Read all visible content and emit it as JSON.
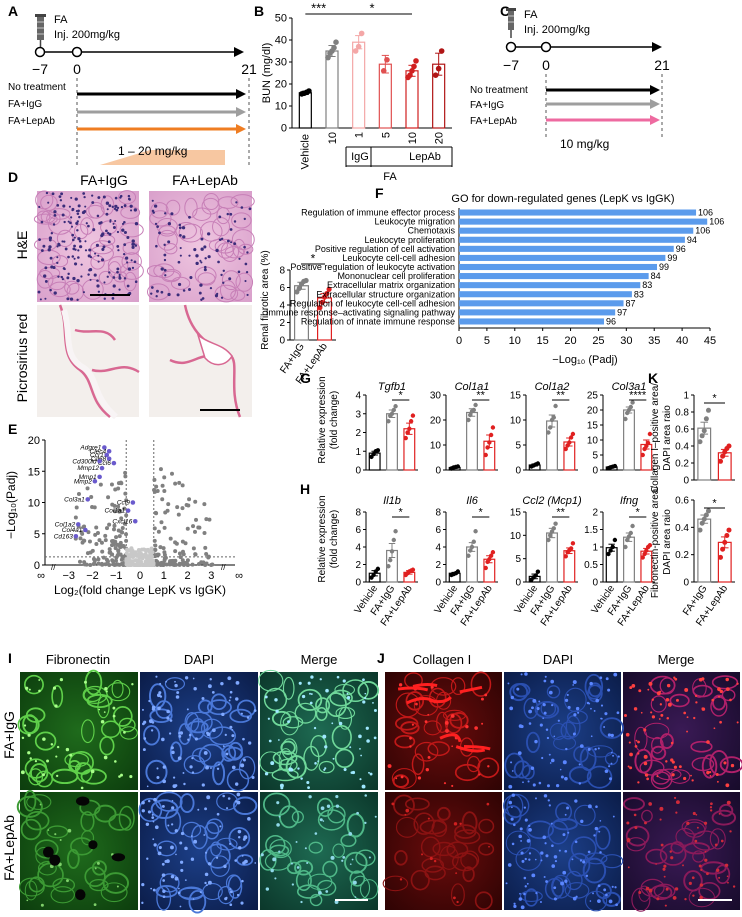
{
  "panelA": {
    "letter": "A",
    "drug": "FA",
    "dose": "Inj. 200mg/kg",
    "ticks": [
      "−7",
      "0",
      "21"
    ],
    "groups": [
      "No treatment",
      "FA+IgG",
      "FA+LepAb"
    ],
    "range": "1 – 20 mg/kg",
    "colors": {
      "none": "#000000",
      "igg": "#9e9e9e",
      "lepab": "#ef7d22"
    }
  },
  "panelB": {
    "letter": "B",
    "chart_data": {
      "type": "bar",
      "ylabel": "BUN (mg/dl)",
      "ylim": [
        0,
        50
      ],
      "yticks": [
        0,
        10,
        20,
        30,
        40,
        50
      ],
      "categories": [
        "Vehicle",
        "10",
        "1",
        "5",
        "10",
        "20"
      ],
      "group_labels": {
        "igg": "IgG",
        "lepab": "LepAb",
        "fa": "FA"
      },
      "values": [
        16,
        35,
        39,
        29,
        26,
        29
      ],
      "errors": [
        0.7,
        2.5,
        3.0,
        4.0,
        2.5,
        5.0
      ],
      "points": [
        [
          15.5,
          15.8,
          16.2,
          16.8
        ],
        [
          32,
          34,
          35,
          36.5,
          39
        ],
        [
          35,
          37,
          43
        ],
        [
          26,
          31
        ],
        [
          23,
          24,
          26,
          28,
          30.5
        ],
        [
          24,
          27,
          35
        ]
      ],
      "colors": [
        "#000000",
        "#808080",
        "#f4a7a7",
        "#e05050",
        "#d02020",
        "#b01515"
      ],
      "significance": [
        "***",
        "*"
      ]
    }
  },
  "panelC": {
    "letter": "C",
    "drug": "FA",
    "dose": "Inj. 200mg/kg",
    "ticks": [
      "−7",
      "0",
      "21"
    ],
    "groups": [
      "No treatment",
      "FA+IgG",
      "FA+LepAb"
    ],
    "lepab_dose": "10 mg/kg",
    "colors": {
      "none": "#000000",
      "igg": "#9e9e9e",
      "lepab": "#ee6aa0"
    }
  },
  "panelD": {
    "letter": "D",
    "col_labels": [
      "FA+IgG",
      "FA+LepAb"
    ],
    "row_labels": [
      "H&E",
      "Picrosirius red"
    ],
    "chart_data": {
      "type": "bar",
      "ylabel": "Renal fibrotic area (%)",
      "ylim": [
        0,
        8
      ],
      "yticks": [
        0,
        2,
        4,
        6,
        8
      ],
      "categories": [
        "FA+IgG",
        "FA+LepAb"
      ],
      "values": [
        6.2,
        4.8
      ],
      "errors": [
        0.4,
        0.5
      ],
      "points": [
        [
          5.5,
          5.9,
          6.4,
          6.7,
          6.8
        ],
        [
          3.7,
          4.3,
          4.9,
          5.3,
          5.8
        ]
      ],
      "colors": [
        "#808080",
        "#e02020"
      ],
      "significance": "*"
    }
  },
  "panelE": {
    "letter": "E",
    "chart_data": {
      "type": "scatter",
      "xlabel": "Log₂(fold change LepK vs IgGK)",
      "ylabel": "−Log₁₀(Padj)",
      "xlim": [
        -4,
        4
      ],
      "ylim": [
        0,
        20
      ],
      "xticks": [
        "∞",
        "−3",
        "−2",
        "−1",
        "0",
        "1",
        "2",
        "3",
        "∞"
      ],
      "yticks": [
        0,
        5,
        10,
        15,
        20
      ],
      "labeled_genes": [
        {
          "gene": "Adgre1",
          "x": -1.5,
          "y": 18.8
        },
        {
          "gene": "Clec4",
          "x": -1.3,
          "y": 18.2
        },
        {
          "gene": "Ccr1",
          "x": -1.4,
          "y": 17.6
        },
        {
          "gene": "Cd68",
          "x": -1.3,
          "y": 17.0
        },
        {
          "gene": "Ccl6",
          "x": -1.1,
          "y": 16.3
        },
        {
          "gene": "Cd300ld",
          "x": -1.7,
          "y": 16.6
        },
        {
          "gene": "Mmp12",
          "x": -1.6,
          "y": 15.5
        },
        {
          "gene": "Mmp1",
          "x": -1.7,
          "y": 14.1
        },
        {
          "gene": "Mmp2",
          "x": -1.9,
          "y": 13.4
        },
        {
          "gene": "Col3a1",
          "x": -2.2,
          "y": 10.5
        },
        {
          "gene": "Ccl9",
          "x": -0.3,
          "y": 10.0
        },
        {
          "gene": "Col1a1",
          "x": -0.5,
          "y": 8.7
        },
        {
          "gene": "Cxcl16",
          "x": -0.2,
          "y": 7.0
        },
        {
          "gene": "Col1a2",
          "x": -2.6,
          "y": 6.5
        },
        {
          "gene": "Col4a1",
          "x": -2.3,
          "y": 5.6
        },
        {
          "gene": "Cd163",
          "x": -2.7,
          "y": 4.6
        }
      ]
    }
  },
  "panelF": {
    "letter": "F",
    "chart_data": {
      "type": "bar",
      "title": "GO for down-regulated genes (LepK vs IgGK)",
      "xlabel": "−Log₁₀ (Padj)",
      "xlim": [
        0,
        45
      ],
      "xticks": [
        0,
        5,
        10,
        15,
        20,
        25,
        30,
        35,
        40,
        45
      ],
      "categories": [
        "Regulation of immune effector process",
        "Leukocyte migration",
        "Chemotaxis",
        "Leukocyte proliferation",
        "Positive regulation of cell activation",
        "Leukocyte cell-cell adhesion",
        "Positive regulation of leukocyte activation",
        "Mononuclear cell proliferation",
        "Extracellular matrix organization",
        "Extracellular structure organization",
        "Regulation of leukocyte cell-cell adhesion",
        "Immune response–activating signaling pathway",
        "Regulation of innate immune response"
      ],
      "values": [
        42.5,
        44.5,
        42.0,
        40.5,
        38.5,
        37.0,
        35.5,
        34.0,
        32.5,
        31.0,
        29.5,
        28.0,
        26.0
      ],
      "data_labels": [
        "106",
        "106",
        "106",
        "94",
        "96",
        "99",
        "99",
        "84",
        "83",
        "83",
        "87",
        "97",
        "96"
      ],
      "color": "#5b9bec"
    }
  },
  "panelG": {
    "letter": "G",
    "ylabel": [
      "Relative expression",
      "(fold change)"
    ],
    "chart_data": [
      {
        "type": "bar",
        "title": "Tgfb1",
        "ylim": [
          0,
          4
        ],
        "yticks": [
          0,
          1,
          2,
          3,
          4
        ],
        "values": [
          0.9,
          3.0,
          2.2
        ],
        "errors": [
          0.1,
          0.2,
          0.3
        ],
        "points": [
          [
            0.7,
            0.85,
            1.0,
            1.05
          ],
          [
            2.6,
            2.9,
            3.0,
            3.2,
            3.4
          ],
          [
            1.7,
            2.0,
            2.2,
            2.6,
            2.9
          ]
        ],
        "significance": "*"
      },
      {
        "type": "bar",
        "title": "Col1a1",
        "ylim": [
          0,
          30
        ],
        "yticks": [
          0,
          10,
          20,
          30
        ],
        "values": [
          1.0,
          23.0,
          11.5
        ],
        "errors": [
          0.3,
          1.5,
          2.5
        ],
        "points": [
          [
            0.6,
            1.0,
            1.2,
            1.4
          ],
          [
            20,
            22,
            23.5,
            24,
            26
          ],
          [
            6,
            9,
            11,
            14,
            17
          ]
        ],
        "significance": "**"
      },
      {
        "type": "bar",
        "title": "Col1a2",
        "ylim": [
          0,
          15
        ],
        "yticks": [
          0,
          5,
          10,
          15
        ],
        "values": [
          1.0,
          9.8,
          5.6
        ],
        "errors": [
          0.2,
          1.2,
          0.8
        ],
        "points": [
          [
            0.7,
            0.9,
            1.1,
            1.3
          ],
          [
            7.5,
            8.5,
            10,
            10.5,
            12.8
          ],
          [
            4.2,
            4.9,
            5.5,
            6.5,
            7.2
          ]
        ],
        "significance": "**"
      },
      {
        "type": "bar",
        "title": "Col3a1",
        "ylim": [
          0,
          25
        ],
        "yticks": [
          0,
          5,
          10,
          15,
          20,
          25
        ],
        "values": [
          1.0,
          20.0,
          8.5
        ],
        "errors": [
          0.2,
          1.0,
          1.5
        ],
        "points": [
          [
            0.6,
            0.9,
            1.1,
            1.3
          ],
          [
            17,
            19,
            20,
            21,
            22.5
          ],
          [
            5,
            7,
            8,
            9,
            12
          ]
        ],
        "significance": "****"
      }
    ]
  },
  "panelH": {
    "letter": "H",
    "ylabel": [
      "Relative expression",
      "(fold change)"
    ],
    "categories": [
      "Vehicle",
      "FA+IgG",
      "FA+LepAb"
    ],
    "chart_data": [
      {
        "type": "bar",
        "title": "Il1b",
        "ylim": [
          0,
          8
        ],
        "yticks": [
          0,
          2,
          4,
          6,
          8
        ],
        "values": [
          1.0,
          3.6,
          1.1
        ],
        "errors": [
          0.3,
          0.8,
          0.2
        ],
        "points": [
          [
            0.5,
            0.8,
            1.2,
            1.5
          ],
          [
            1.8,
            2.5,
            3.5,
            4.8,
            5.8
          ],
          [
            0.8,
            1.0,
            1.2,
            1.3,
            1.4
          ]
        ],
        "significance": "*"
      },
      {
        "type": "bar",
        "title": "Il6",
        "ylim": [
          0,
          8
        ],
        "yticks": [
          0,
          2,
          4,
          6,
          8
        ],
        "values": [
          1.0,
          4.0,
          2.6
        ],
        "errors": [
          0.1,
          0.5,
          0.4
        ],
        "points": [
          [
            0.8,
            0.9,
            1.0,
            1.2
          ],
          [
            3.0,
            3.6,
            4.0,
            4.6,
            5.8
          ],
          [
            1.6,
            2.3,
            2.6,
            3.0,
            3.4
          ]
        ],
        "significance": "*"
      },
      {
        "type": "bar",
        "title": "Ccl2 (Mcp1)",
        "ylim": [
          0,
          15
        ],
        "yticks": [
          0,
          5,
          10,
          15
        ],
        "values": [
          1.2,
          10.5,
          6.7
        ],
        "errors": [
          0.5,
          1.0,
          0.6
        ],
        "points": [
          [
            0.5,
            1.0,
            1.4,
            2.2
          ],
          [
            9.0,
            10.0,
            10.8,
            11.5,
            12.5
          ],
          [
            5.5,
            6.4,
            6.8,
            7.2,
            8.3
          ]
        ],
        "significance": "**"
      },
      {
        "type": "bar",
        "title": "Ifng",
        "ylim": [
          0,
          2.0
        ],
        "yticks": [
          0,
          0.5,
          1.0,
          1.5,
          2.0
        ],
        "values": [
          0.98,
          1.28,
          0.88
        ],
        "errors": [
          0.1,
          0.12,
          0.08
        ],
        "points": [
          [
            0.8,
            0.9,
            1.0,
            1.2
          ],
          [
            1.0,
            1.2,
            1.3,
            1.4,
            1.6
          ],
          [
            0.7,
            0.8,
            0.9,
            1.0,
            1.05
          ]
        ],
        "significance": "*"
      }
    ]
  },
  "panelK": {
    "letter": "K",
    "categories": [
      "FA+IgG",
      "FA+LepAb"
    ],
    "chart_data": [
      {
        "type": "bar",
        "ylabel": [
          "Collagen I–positive area/",
          "DAPI area raio"
        ],
        "ylim": [
          0,
          1.0
        ],
        "yticks": [
          0,
          0.2,
          0.4,
          0.6,
          0.8,
          1.0
        ],
        "values": [
          0.61,
          0.32
        ],
        "errors": [
          0.07,
          0.04
        ],
        "points": [
          [
            0.45,
            0.52,
            0.58,
            0.72,
            0.82
          ],
          [
            0.22,
            0.28,
            0.33,
            0.37,
            0.4
          ]
        ],
        "colors": [
          "#808080",
          "#e02020"
        ],
        "significance": "*"
      },
      {
        "type": "bar",
        "ylabel": [
          "Fibronectin-positive area/",
          "DAPI area raio"
        ],
        "ylim": [
          0,
          0.6
        ],
        "yticks": [
          0,
          0.2,
          0.4,
          0.6
        ],
        "values": [
          0.46,
          0.29
        ],
        "errors": [
          0.03,
          0.04
        ],
        "points": [
          [
            0.38,
            0.43,
            0.46,
            0.49,
            0.52
          ],
          [
            0.18,
            0.24,
            0.29,
            0.34,
            0.38
          ]
        ],
        "colors": [
          "#808080",
          "#e02020"
        ],
        "significance": "*"
      }
    ]
  },
  "panelI": {
    "letter": "I",
    "col_labels": [
      "Fibronectin",
      "DAPI",
      "Merge"
    ],
    "row_labels": [
      "FA+IgG",
      "FA+LepAb"
    ]
  },
  "panelJ": {
    "letter": "J",
    "col_labels": [
      "Collagen I",
      "DAPI",
      "Merge"
    ]
  }
}
